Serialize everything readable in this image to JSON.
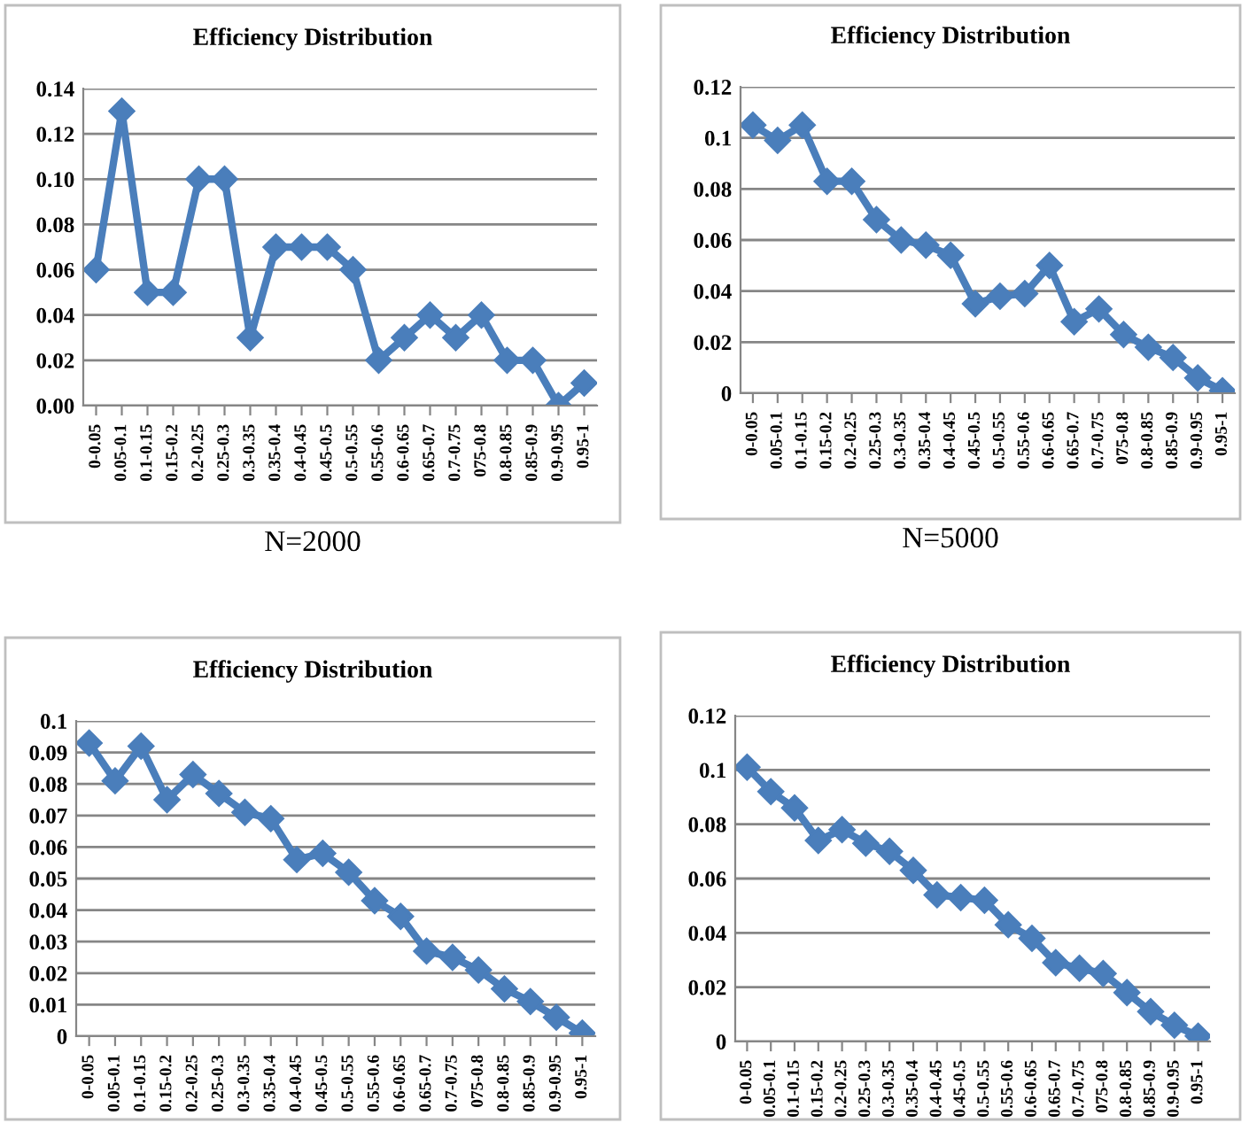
{
  "chart_data": [
    {
      "type": "line",
      "title": "Efficiency Distribution",
      "annotations": [
        "N=2000"
      ],
      "categories": [
        "0-0.05",
        "0.05-0.1",
        "0.1-0.15",
        "0.15-0.2",
        "0.2-0.25",
        "0.25-0.3",
        "0.3-0.35",
        "0.35-0.4",
        "0.4-0.45",
        "0.45-0.5",
        "0.5-0.55",
        "0.55-0.6",
        "0.6-0.65",
        "0.65-0.7",
        "0.7-0.75",
        "075-0.8",
        "0.8-0.85",
        "0.85-0.9",
        "0.9-0.95",
        "0.95-1"
      ],
      "series": [
        {
          "color": "#4a7ebb",
          "values": [
            0.06,
            0.13,
            0.05,
            0.05,
            0.1,
            0.1,
            0.03,
            0.07,
            0.07,
            0.07,
            0.06,
            0.02,
            0.03,
            0.04,
            0.03,
            0.04,
            0.02,
            0.02,
            0.0,
            0.01
          ]
        }
      ],
      "ylim": [
        0,
        0.14
      ],
      "yticks": [
        {
          "value": 0,
          "label": "0.00"
        },
        {
          "value": 0.02,
          "label": "0.02"
        },
        {
          "value": 0.04,
          "label": "0.04"
        },
        {
          "value": 0.06,
          "label": "0.06"
        },
        {
          "value": 0.08,
          "label": "0.08"
        },
        {
          "value": 0.1,
          "label": "0.10"
        },
        {
          "value": 0.12,
          "label": "0.12"
        },
        {
          "value": 0.14,
          "label": "0.14"
        }
      ],
      "grid": "y",
      "marker": "diamond",
      "line_style": "solid"
    },
    {
      "type": "line",
      "title": "Efficiency Distribution",
      "annotations": [
        "N=5000"
      ],
      "categories": [
        "0-0.05",
        "0.05-0.1",
        "0.1-0.15",
        "0.15-0.2",
        "0.2-0.25",
        "0.25-0.3",
        "0.3-0.35",
        "0.35-0.4",
        "0.4-0.45",
        "0.45-0.5",
        "0.5-0.55",
        "0.55-0.6",
        "0.6-0.65",
        "0.65-0.7",
        "0.7-0.75",
        "075-0.8",
        "0.8-0.85",
        "0.85-0.9",
        "0.9-0.95",
        "0.95-1"
      ],
      "series": [
        {
          "color": "#4a7ebb",
          "values": [
            0.105,
            0.099,
            0.105,
            0.083,
            0.083,
            0.068,
            0.06,
            0.058,
            0.054,
            0.035,
            0.038,
            0.039,
            0.05,
            0.028,
            0.033,
            0.023,
            0.018,
            0.014,
            0.006,
            0.001
          ]
        }
      ],
      "ylim": [
        0,
        0.12
      ],
      "yticks": [
        0,
        0.02,
        0.04,
        0.06,
        0.08,
        0.1,
        0.12
      ],
      "grid": "y",
      "marker": "diamond",
      "line_style": "solid"
    },
    {
      "type": "line",
      "title": "Efficiency Distribution",
      "categories": [
        "0-0.05",
        "0.05-0.1",
        "0.1-0.15",
        "0.15-0.2",
        "0.2-0.25",
        "0.25-0.3",
        "0.3-0.35",
        "0.35-0.4",
        "0.4-0.45",
        "0.45-0.5",
        "0.5-0.55",
        "0.55-0.6",
        "0.6-0.65",
        "0.65-0.7",
        "0.7-0.75",
        "075-0.8",
        "0.8-0.85",
        "0.85-0.9",
        "0.9-0.95",
        "0.95-1"
      ],
      "series": [
        {
          "color": "#4a7ebb",
          "values": [
            0.093,
            0.081,
            0.092,
            0.075,
            0.083,
            0.077,
            0.071,
            0.069,
            0.056,
            0.058,
            0.052,
            0.043,
            0.038,
            0.027,
            0.025,
            0.021,
            0.015,
            0.011,
            0.006,
            0.001
          ]
        }
      ],
      "ylim": [
        0,
        0.1
      ],
      "yticks": [
        0,
        0.01,
        0.02,
        0.03,
        0.04,
        0.05,
        0.06,
        0.07,
        0.08,
        0.09,
        0.1
      ],
      "grid": "y",
      "marker": "diamond",
      "line_style": "solid"
    },
    {
      "type": "line",
      "title": "Efficiency Distribution",
      "categories": [
        "0-0.05",
        "0.05-0.1",
        "0.1-0.15",
        "0.15-0.2",
        "0.2-0.25",
        "0.25-0.3",
        "0.3-0.35",
        "0.35-0.4",
        "0.4-0.45",
        "0.45-0.5",
        "0.5-0.55",
        "0.55-0.6",
        "0.6-0.65",
        "0.65-0.7",
        "0.7-0.75",
        "075-0.8",
        "0.8-0.85",
        "0.85-0.9",
        "0.9-0.95",
        "0.95-1"
      ],
      "series": [
        {
          "color": "#4a7ebb",
          "values": [
            0.101,
            0.092,
            0.086,
            0.074,
            0.078,
            0.073,
            0.07,
            0.063,
            0.054,
            0.053,
            0.052,
            0.043,
            0.038,
            0.029,
            0.027,
            0.025,
            0.018,
            0.011,
            0.006,
            0.002
          ]
        }
      ],
      "ylim": [
        0,
        0.12
      ],
      "yticks": [
        0,
        0.02,
        0.04,
        0.06,
        0.08,
        0.1,
        0.12
      ],
      "grid": "y",
      "marker": "diamond",
      "line_style": "solid"
    }
  ]
}
